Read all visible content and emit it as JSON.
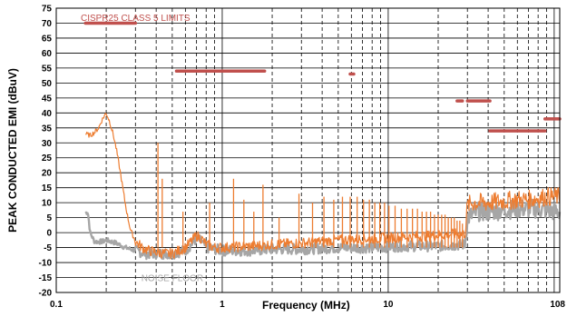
{
  "chart_data": {
    "type": "line",
    "xlabel": "Frequency (MHz)",
    "ylabel": "PEAK CONDUCTED  EMI (dBuV)",
    "x_scale": "log",
    "xlim": [
      0.1,
      108
    ],
    "ylim": [
      -20,
      75
    ],
    "y_ticks": [
      75,
      70,
      65,
      60,
      55,
      50,
      45,
      40,
      35,
      30,
      25,
      20,
      15,
      10,
      5,
      0,
      -5,
      -10,
      -15,
      -20
    ],
    "x_ticks": [
      {
        "value": 0.1,
        "label": "0.1"
      },
      {
        "value": 1,
        "label": "1"
      },
      {
        "value": 10,
        "label": "10"
      },
      {
        "value": 108,
        "label": "108"
      }
    ],
    "grid": true,
    "annotations": [
      {
        "text": "CISPR25 CLASS 5 LIMITS",
        "color": "#c0504d",
        "x": 0.3,
        "y": 72
      },
      {
        "text": "NOISE FLOOR",
        "color": "#a6a6a6",
        "x": 0.5,
        "y": -15
      }
    ],
    "limit_lines": {
      "color": "#c0504d",
      "segments": [
        {
          "x": [
            0.15,
            0.3
          ],
          "y": 70
        },
        {
          "x": [
            0.53,
            1.8
          ],
          "y": 54
        },
        {
          "x": [
            5.9,
            6.2
          ],
          "y": 53
        },
        {
          "x": [
            26,
            28
          ],
          "y": 44
        },
        {
          "x": [
            30,
            41
          ],
          "y": 44
        },
        {
          "x": [
            41,
            88
          ],
          "y": 34
        },
        {
          "x": [
            88,
            108
          ],
          "y": 38
        }
      ]
    },
    "series": [
      {
        "color": "#ed7d31",
        "points": [
          [
            0.15,
            33
          ],
          [
            0.16,
            32.5
          ],
          [
            0.17,
            33.5
          ],
          [
            0.18,
            35
          ],
          [
            0.19,
            38
          ],
          [
            0.2,
            40
          ],
          [
            0.21,
            37
          ],
          [
            0.22,
            33
          ],
          [
            0.23,
            28
          ],
          [
            0.24,
            22
          ],
          [
            0.25,
            16
          ],
          [
            0.26,
            10
          ],
          [
            0.27,
            5
          ],
          [
            0.28,
            1
          ],
          [
            0.3,
            -3
          ],
          [
            0.33,
            -5
          ],
          [
            0.36,
            -6
          ],
          [
            0.4,
            -6.5
          ],
          [
            0.45,
            -7
          ],
          [
            0.5,
            -7
          ],
          [
            0.55,
            -6
          ],
          [
            0.6,
            -5
          ],
          [
            0.65,
            -3
          ],
          [
            0.7,
            -1
          ],
          [
            0.75,
            -2
          ],
          [
            0.8,
            -4
          ],
          [
            0.9,
            -5
          ],
          [
            1,
            -5
          ],
          [
            1.5,
            -4.5
          ],
          [
            2,
            -4
          ],
          [
            3,
            -3.5
          ],
          [
            5,
            -2.5
          ],
          [
            8,
            -2
          ],
          [
            12,
            -1.5
          ],
          [
            18,
            -1
          ],
          [
            25,
            -0.5
          ],
          [
            29,
            -0.5
          ],
          [
            30,
            9
          ],
          [
            32,
            10
          ],
          [
            40,
            10
          ],
          [
            50,
            10.5
          ],
          [
            60,
            11
          ],
          [
            70,
            11
          ],
          [
            80,
            11.5
          ],
          [
            90,
            12
          ],
          [
            100,
            12
          ],
          [
            108,
            12
          ]
        ]
      },
      {
        "color": "#a6a6a6",
        "points": [
          [
            0.15,
            6.5
          ],
          [
            0.155,
            7
          ],
          [
            0.16,
            0
          ],
          [
            0.17,
            -3
          ],
          [
            0.19,
            -3
          ],
          [
            0.2,
            -2.5
          ],
          [
            0.23,
            -3.5
          ],
          [
            0.26,
            -5
          ],
          [
            0.3,
            -6
          ],
          [
            0.35,
            -7
          ],
          [
            0.4,
            -7
          ],
          [
            0.5,
            -7
          ],
          [
            0.6,
            -6
          ],
          [
            0.65,
            -4
          ],
          [
            0.7,
            -2
          ],
          [
            0.75,
            -3
          ],
          [
            0.8,
            -5
          ],
          [
            1,
            -6
          ],
          [
            1.5,
            -6
          ],
          [
            2,
            -5.5
          ],
          [
            3,
            -5.5
          ],
          [
            5,
            -5
          ],
          [
            8,
            -5
          ],
          [
            12,
            -4.5
          ],
          [
            20,
            -4.5
          ],
          [
            29,
            -4
          ],
          [
            30,
            5
          ],
          [
            35,
            7
          ],
          [
            40,
            7
          ],
          [
            50,
            7.5
          ],
          [
            60,
            8
          ],
          [
            80,
            8
          ],
          [
            100,
            7
          ],
          [
            108,
            7
          ]
        ]
      },
      {
        "color": "#ed7d31",
        "type": "spikes",
        "base": -5,
        "peaks": [
          [
            0.41,
            30
          ],
          [
            0.435,
            18
          ],
          [
            0.58,
            7
          ],
          [
            0.84,
            10
          ],
          [
            1.17,
            18
          ],
          [
            1.35,
            11
          ],
          [
            1.55,
            7
          ],
          [
            1.76,
            16
          ],
          [
            2.2,
            5
          ],
          [
            2.9,
            13
          ],
          [
            3.5,
            10
          ],
          [
            4.1,
            12
          ],
          [
            4.7,
            11
          ],
          [
            5.3,
            12
          ],
          [
            5.9,
            12
          ],
          [
            6.5,
            12
          ],
          [
            7.1,
            11
          ],
          [
            7.7,
            11
          ],
          [
            8.3,
            10
          ],
          [
            8.9,
            10
          ],
          [
            9.5,
            10
          ],
          [
            10.1,
            9
          ],
          [
            11,
            9
          ],
          [
            12,
            8
          ],
          [
            13,
            8
          ],
          [
            14,
            8
          ],
          [
            15,
            8
          ],
          [
            16,
            7
          ],
          [
            17,
            7
          ],
          [
            18,
            7
          ],
          [
            19,
            6
          ],
          [
            20,
            6
          ],
          [
            21,
            6
          ],
          [
            22,
            6
          ],
          [
            23,
            5
          ],
          [
            24,
            5
          ],
          [
            25,
            5
          ],
          [
            26,
            4
          ],
          [
            27,
            4
          ],
          [
            28,
            3
          ]
        ]
      }
    ]
  }
}
